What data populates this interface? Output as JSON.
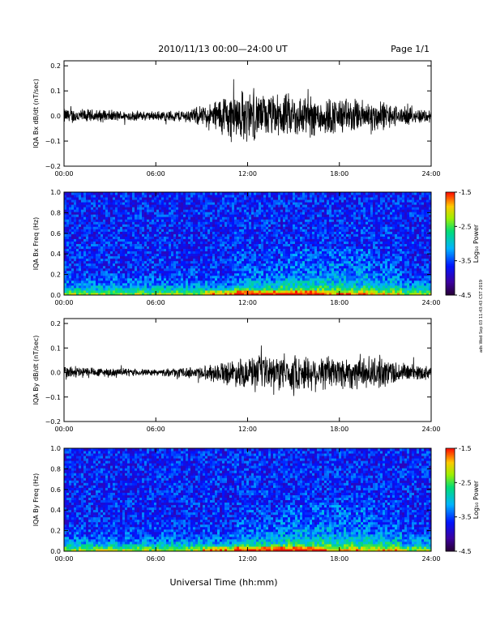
{
  "header": {
    "title": "2010/11/13  00:00—24:00 UT",
    "page": "Page 1/1"
  },
  "footer": {
    "xlabel": "Universal Time (hh:mm)"
  },
  "side_note": "ads Wed Sep 03 11:43:43 CST 2019",
  "chart_data": [
    {
      "type": "line",
      "ylabel": "IQA Bx dB/dt (nT/sec)",
      "x_ticks": [
        "00:00",
        "06:00",
        "12:00",
        "18:00",
        "24:00"
      ],
      "xlim": [
        0,
        24
      ],
      "ylim": [
        -0.2,
        0.22
      ],
      "y_ticks": [
        "0.2",
        "0.1",
        "0.0",
        "−0.1",
        "−0.2"
      ],
      "y_tick_values": [
        0.2,
        0.1,
        0.0,
        -0.1,
        -0.2
      ],
      "amplitude_envelope": {
        "hours": [
          0,
          2,
          4,
          6,
          8,
          9.5,
          10.5,
          12,
          13,
          15,
          17,
          19,
          21,
          22,
          24
        ],
        "amplitude": [
          0.03,
          0.025,
          0.02,
          0.018,
          0.025,
          0.045,
          0.09,
          0.1,
          0.08,
          0.085,
          0.075,
          0.065,
          0.055,
          0.035,
          0.025
        ]
      },
      "color": "#000000"
    },
    {
      "type": "heatmap",
      "ylabel": "IQA Bx Freq (Hz)",
      "x_ticks": [
        "00:00",
        "06:00",
        "12:00",
        "18:00",
        "24:00"
      ],
      "xlim": [
        0,
        24
      ],
      "ylim": [
        0,
        1.0
      ],
      "y_ticks": [
        "1.0",
        "0.8",
        "0.6",
        "0.4",
        "0.2",
        "0.0"
      ],
      "y_tick_values": [
        1.0,
        0.8,
        0.6,
        0.4,
        0.2,
        0.0
      ],
      "colorbar": {
        "label": "Log₁₀ Power",
        "range": [
          -4.5,
          -1.5
        ],
        "ticks": [
          "-1.5",
          "-2.5",
          "-3.5",
          "-4.5"
        ]
      }
    },
    {
      "type": "line",
      "ylabel": "IQA By dB/dt (nT/sec)",
      "x_ticks": [
        "00:00",
        "06:00",
        "12:00",
        "18:00",
        "24:00"
      ],
      "xlim": [
        0,
        24
      ],
      "ylim": [
        -0.2,
        0.22
      ],
      "y_ticks": [
        "0.2",
        "0.1",
        "0.0",
        "−0.1",
        "−0.2"
      ],
      "y_tick_values": [
        0.2,
        0.1,
        0.0,
        -0.1,
        -0.2
      ],
      "amplitude_envelope": {
        "hours": [
          0,
          2,
          4,
          6,
          8,
          9.5,
          10.5,
          12,
          13,
          15,
          17,
          19,
          21,
          22,
          24
        ],
        "amplitude": [
          0.03,
          0.02,
          0.015,
          0.012,
          0.02,
          0.03,
          0.045,
          0.06,
          0.065,
          0.07,
          0.07,
          0.065,
          0.06,
          0.04,
          0.025
        ]
      },
      "color": "#000000"
    },
    {
      "type": "heatmap",
      "ylabel": "IQA By Freq (Hz)",
      "x_ticks": [
        "00:00",
        "06:00",
        "12:00",
        "18:00",
        "24:00"
      ],
      "xlim": [
        0,
        24
      ],
      "ylim": [
        0,
        1.0
      ],
      "y_ticks": [
        "1.0",
        "0.8",
        "0.6",
        "0.4",
        "0.2",
        "0.0"
      ],
      "y_tick_values": [
        1.0,
        0.8,
        0.6,
        0.4,
        0.2,
        0.0
      ],
      "colorbar": {
        "label": "Log₁₀ Power",
        "range": [
          -4.5,
          -1.5
        ],
        "ticks": [
          "-1.5",
          "-2.5",
          "-3.5",
          "-4.5"
        ]
      }
    }
  ]
}
